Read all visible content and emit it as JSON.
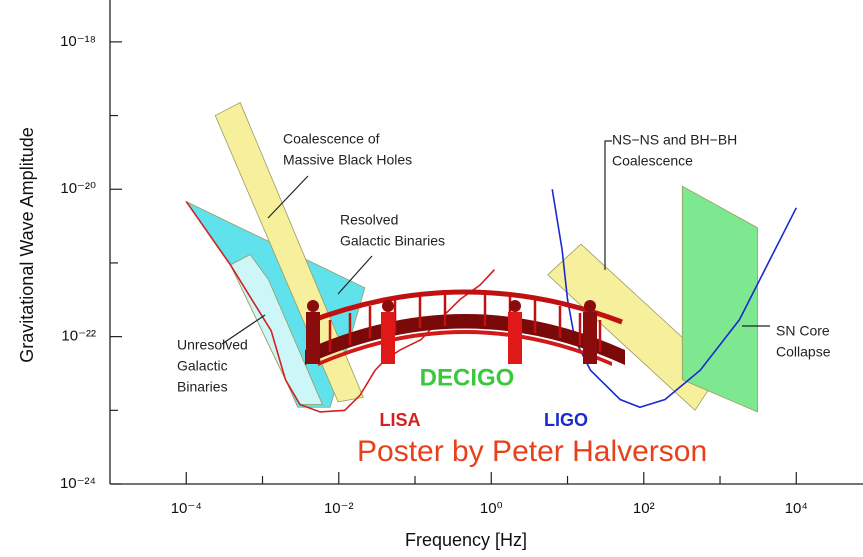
{
  "chart_data": {
    "type": "line",
    "xscale": "log",
    "yscale": "log",
    "xlabel": "Frequency  [Hz]",
    "ylabel": "Gravitational Wave Amplitude",
    "xlim": [
      1e-05,
      75000.0
    ],
    "ylim": [
      1e-24,
      3.7e-18
    ],
    "xticks": [
      {
        "value": 0.0001,
        "label": "10⁻⁴"
      },
      {
        "value": 0.01,
        "label": "10⁻²"
      },
      {
        "value": 1,
        "label": "10⁰"
      },
      {
        "value": 100,
        "label": "10²"
      },
      {
        "value": 10000,
        "label": "10⁴"
      }
    ],
    "yticks": [
      {
        "value": 1e-24,
        "label": "10⁻²⁴"
      },
      {
        "value": 1e-22,
        "label": "10⁻²²"
      },
      {
        "value": 1e-20,
        "label": "10⁻²⁰"
      },
      {
        "value": 1e-18,
        "label": "10⁻¹⁸"
      }
    ],
    "xminor": [
      0.001,
      0.1,
      10,
      1000
    ],
    "yminor": [
      1e-23,
      1e-21,
      1e-19
    ],
    "series": [
      {
        "name": "LISA",
        "color": "#d42020",
        "x": [
          0.0001,
          0.00038,
          0.0013,
          0.002,
          0.0031,
          0.0057,
          0.012,
          0.019,
          0.03,
          0.041,
          0.064,
          0.12,
          0.21,
          0.39,
          0.71,
          1.1
        ],
        "values": [
          6.8e-21,
          9.4e-22,
          1.2e-22,
          2.6e-23,
          1.2e-23,
          9.5e-24,
          1e-23,
          1.6e-23,
          3.5e-23,
          4.9e-23,
          6.6e-23,
          9.1e-23,
          1.7e-22,
          3.2e-22,
          5e-22,
          8.1e-22
        ]
      },
      {
        "name": "LIGO",
        "color": "#1a2ad0",
        "x": [
          6.3,
          8.5,
          10,
          12.5,
          20,
          49,
          89,
          190,
          550,
          1800,
          4500,
          10000
        ],
        "values": [
          1e-20,
          1.5e-21,
          3.2e-22,
          9.1e-23,
          3.5e-23,
          1.4e-23,
          1.1e-23,
          1.4e-23,
          3.5e-23,
          1.7e-22,
          1.1e-21,
          5.6e-21
        ]
      }
    ],
    "regions": [
      {
        "color": "#5fe2ec",
        "x": [
          0.0001,
          0.022,
          0.0077,
          0.0029,
          0.002,
          0.00038
        ],
        "values": [
          6.8e-21,
          4.6e-22,
          1.1e-23,
          1.1e-23,
          2.6e-23,
          9.4e-22
        ]
      },
      {
        "color": "#cdf6f8",
        "x": [
          0.00038,
          0.00069,
          0.0012,
          0.0061,
          0.0031,
          0.002
        ],
        "values": [
          9.4e-22,
          1.3e-21,
          5.9e-22,
          1.2e-23,
          1.2e-23,
          2.6e-23
        ]
      },
      {
        "color": "#f6f09c",
        "x": [
          0.00024,
          0.00051,
          0.021,
          0.0098
        ],
        "values": [
          1e-19,
          1.5e-19,
          1.5e-23,
          1.3e-23
        ]
      },
      {
        "color": "#f6f09c",
        "x": [
          5.5,
          15,
          1000,
          470
        ],
        "values": [
          6.9e-22,
          1.8e-21,
          3.3e-23,
          1e-23
        ]
      },
      {
        "color": "#7ee890",
        "x": [
          320,
          3100,
          3100,
          320
        ],
        "values": [
          1.1e-20,
          3e-21,
          9.5e-24,
          2.6e-23
        ]
      }
    ],
    "annotations": [
      {
        "lines": [
          "Coalescence of",
          "Massive Black Holes"
        ]
      },
      {
        "lines": [
          "Resolved",
          "Galactic Binaries"
        ]
      },
      {
        "lines": [
          "Unresolved",
          "Galactic",
          "Binaries"
        ]
      },
      {
        "lines": [
          "NS−NS and BH−BH",
          "Coalescence"
        ]
      },
      {
        "lines": [
          "SN Core",
          "Collapse"
        ]
      }
    ],
    "decigo_label": "DECIGO",
    "credit": "Poster by Peter Halverson"
  }
}
